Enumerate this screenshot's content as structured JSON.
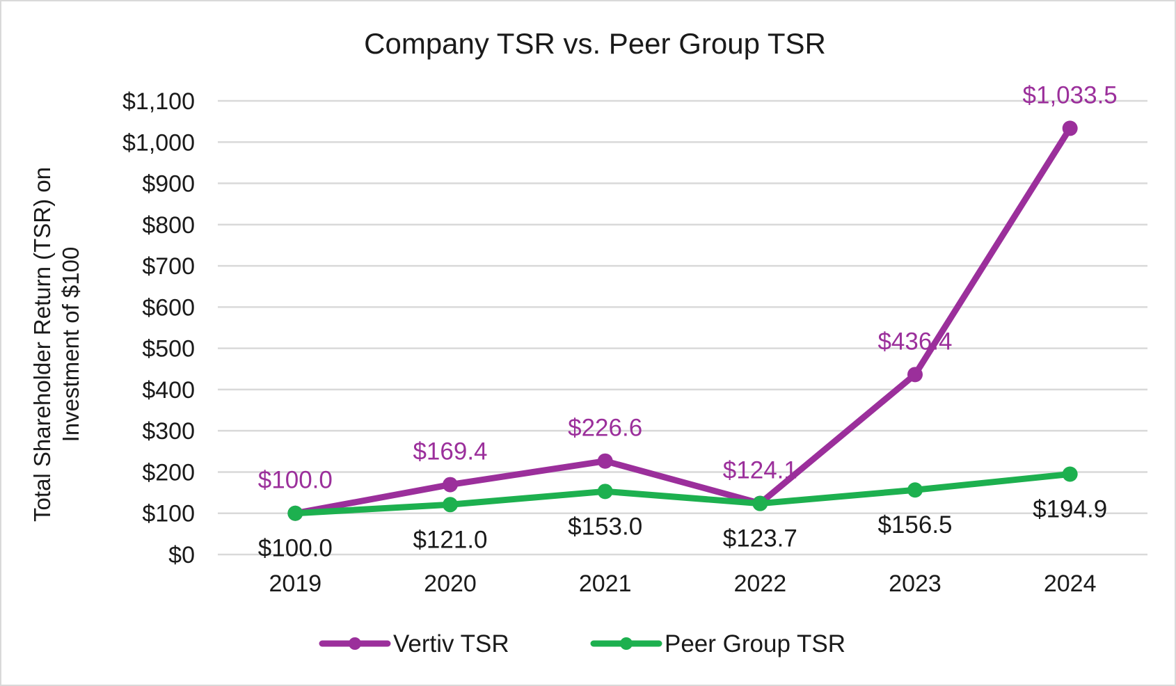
{
  "chart_data": {
    "type": "line",
    "title": "Company TSR vs. Peer Group TSR",
    "xlabel": "",
    "ylabel_lines": [
      "Total Shareholder Return (TSR) on",
      "Investment of $100"
    ],
    "categories": [
      "2019",
      "2020",
      "2021",
      "2022",
      "2023",
      "2024"
    ],
    "ylim": [
      0,
      1100
    ],
    "yticks": [
      0,
      100,
      200,
      300,
      400,
      500,
      600,
      700,
      800,
      900,
      1000,
      1100
    ],
    "ytick_labels": [
      "$0",
      "$100",
      "$200",
      "$300",
      "$400",
      "$500",
      "$600",
      "$700",
      "$800",
      "$900",
      "$1,000",
      "$1,100"
    ],
    "grid": true,
    "legend_position": "bottom",
    "series": [
      {
        "name": "Vertiv TSR",
        "color": "#9b2f9b",
        "values": [
          100.0,
          169.4,
          226.6,
          124.1,
          436.4,
          1033.5
        ],
        "labels": [
          "$100.0",
          "$169.4",
          "$226.6",
          "$124.1",
          "$436.4",
          "$1,033.5"
        ],
        "label_position": "above"
      },
      {
        "name": "Peer Group TSR",
        "color": "#1db04f",
        "values": [
          100.0,
          121.0,
          153.0,
          123.7,
          156.5,
          194.9
        ],
        "labels": [
          "$100.0",
          "$121.0",
          "$153.0",
          "$123.7",
          "$156.5",
          "$194.9"
        ],
        "label_position": "below"
      }
    ]
  }
}
